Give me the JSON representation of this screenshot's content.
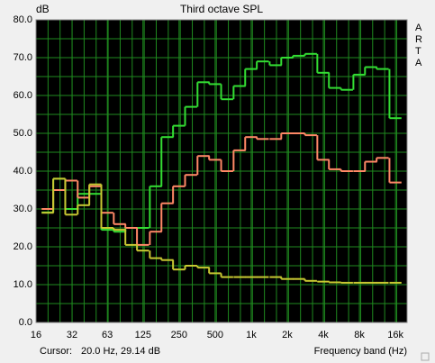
{
  "chart_data": {
    "type": "step",
    "title": "Third octave SPL",
    "y_label": "dB",
    "x_label": "Frequency band (Hz)",
    "watermark": "ARTA",
    "cursor_label": "Cursor:",
    "cursor_value": "20.0 Hz, 29.14 dB",
    "log_x": true,
    "grid": true,
    "x": [
      20,
      25,
      31.5,
      40,
      50,
      63,
      80,
      100,
      125,
      160,
      200,
      250,
      315,
      400,
      500,
      630,
      800,
      1000,
      1250,
      1600,
      2000,
      2500,
      3150,
      4000,
      5000,
      6300,
      8000,
      10000,
      12500,
      16000
    ],
    "series": [
      {
        "color": "#33dd33",
        "values": [
          29.1,
          38,
          30,
          34,
          34,
          24.5,
          24,
          25,
          25,
          36,
          49,
          52,
          57,
          63.5,
          63,
          59,
          62.5,
          67,
          69,
          68,
          70,
          70.5,
          71,
          66,
          62,
          61.5,
          65.5,
          67.5,
          67,
          54
        ]
      },
      {
        "color": "#ff8866",
        "values": [
          30,
          35,
          37.5,
          33,
          36,
          29,
          26,
          25,
          20.5,
          24,
          31.5,
          36,
          39,
          44,
          43,
          40,
          45.5,
          49,
          48.5,
          48.5,
          50,
          50,
          49.5,
          43,
          40.5,
          40,
          40,
          42.5,
          43.5,
          37
        ]
      },
      {
        "color": "#c8c832",
        "values": [
          29,
          38,
          28.5,
          31,
          36.5,
          25,
          24.5,
          20.5,
          19,
          17,
          16.5,
          14,
          15,
          14.5,
          13,
          12,
          12,
          12,
          12,
          12,
          11.5,
          11.5,
          11,
          10.8,
          10.6,
          10.5,
          10.5,
          10.5,
          10.5,
          10.5
        ]
      }
    ],
    "xlim": [
      16,
      20000
    ],
    "xticks": [
      16,
      32,
      63,
      125,
      250,
      500,
      {
        "value": 1000,
        "label": "1k"
      },
      {
        "value": 2000,
        "label": "2k"
      },
      {
        "value": 4000,
        "label": "4k"
      },
      {
        "value": 8000,
        "label": "8k"
      },
      {
        "value": 16000,
        "label": "16k"
      }
    ],
    "ylim": [
      0,
      80
    ],
    "yticks": [
      {
        "value": 0,
        "label": "0.0"
      },
      {
        "value": 10,
        "label": "10.0"
      },
      {
        "value": 20,
        "label": "20.0"
      },
      {
        "value": 30,
        "label": "30.0"
      },
      {
        "value": 40,
        "label": "40.0"
      },
      {
        "value": 50,
        "label": "50.0"
      },
      {
        "value": 60,
        "label": "60.0"
      },
      {
        "value": 70,
        "label": "70.0"
      },
      {
        "value": 80,
        "label": "80.0"
      }
    ]
  }
}
